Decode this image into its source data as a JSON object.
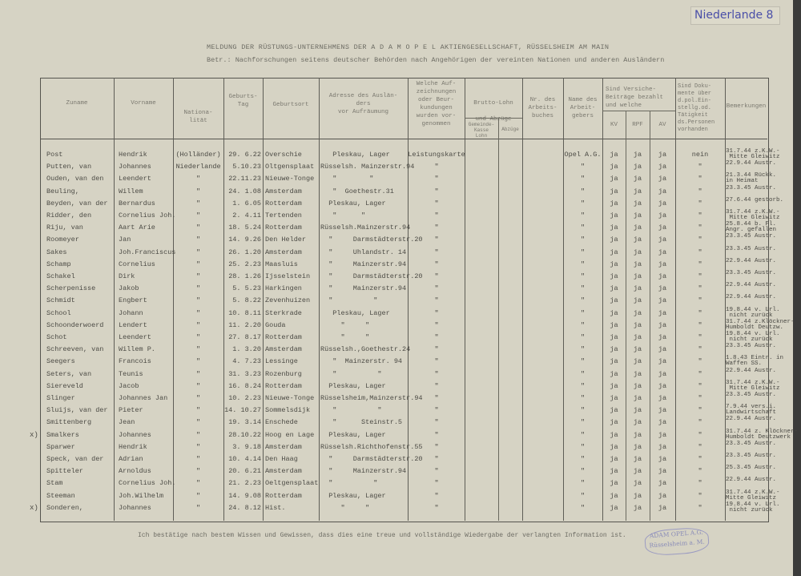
{
  "header": {
    "title": "MELDUNG DER RÜSTUNGS-UNTERNEHMENS DER A D A M  O P E L  AKTIENGESELLSCHAFT, RÜSSELSHEIM AM MAIN",
    "subject": "Betr.: Nachforschungen seitens deutscher Behörden nach Angehörigen der vereinten Nationen und anderen Ausländern",
    "country_note": "Niederlande 8"
  },
  "columns": {
    "zuname": "Zuname",
    "vorname": "Vorname",
    "nationalitaet": "Nationa-\nlität",
    "geburtstag": "Geburts-\nTag",
    "geburtsort": "Geburtsort",
    "adresse": "Adresse des Auslän-\nders\nvor Aufräumung",
    "aufzeichnungen": "Welche Auf-\nzeichnungen\noder Beur-\nkundungen\nwurden vor-\ngenommen",
    "lohn": "Brutto-Lohn\n\nund Abzüge",
    "lohn_sub1": "Gemeinde-\nKasse\nLohn",
    "lohn_sub2": "Abzüge",
    "arbeitsbuch": "Nr. des\nArbeits-\nbuches",
    "arbeitgeber": "Name des\nArbeit-\ngebers",
    "versicherung": "Sind Versiche-\nBeiträge bezahlt\nund welche",
    "kv": "KV",
    "rpf": "RPF",
    "av": "AV",
    "dokumente": "Sind Doku-\nmente über\nd.pol.Ein-\nstellg.od.\nTätigkeit\nds.Personen\nvorhanden",
    "bemerkungen": "Bemerkungen"
  },
  "rows": [
    {
      "zuname": "Post",
      "vorname": "Hendrik",
      "nat": "(Holländer)",
      "tag": "29. 6.22",
      "ort": "Overschie",
      "adresse": "   Pleskau, Lager",
      "aufz": "Leistungskarte",
      "ag": "Opel A.G.",
      "kv": "ja",
      "rpf": "ja",
      "av": "ja",
      "dok": "nein",
      "rem": "31.7.44 z.K.W.-\n Mitte Gleiwitz"
    },
    {
      "zuname": "Putten, van",
      "vorname": "Johannes",
      "nat": "Niederlande",
      "tag": "5.10.23",
      "ort": "Oltgensplaat",
      "adresse": "Rüsselsh. Mainzerstr.94",
      "aufz": "\"",
      "ag": "\"",
      "kv": "ja",
      "rpf": "ja",
      "av": "ja",
      "dok": "\"",
      "rem": "22.9.44 Austr."
    },
    {
      "zuname": "Ouden, van den",
      "vorname": "Leendert",
      "nat": "\"",
      "tag": "22.11.23",
      "ort": "Nieuwe-Tonge",
      "adresse": "   \"        \"",
      "aufz": "\"",
      "ag": "\"",
      "kv": "ja",
      "rpf": "ja",
      "av": "ja",
      "dok": "\"",
      "rem": "21.3.44 Rückk.\nin Heimat"
    },
    {
      "zuname": "Beuling,",
      "vorname": "Willem",
      "nat": "\"",
      "tag": "24. 1.08",
      "ort": "Amsterdam",
      "adresse": "   \"  Goethestr.31",
      "aufz": "\"",
      "ag": "\"",
      "kv": "ja",
      "rpf": "ja",
      "av": "ja",
      "dok": "\"",
      "rem": "23.3.45 Austr."
    },
    {
      "zuname": "Beyden, van der",
      "vorname": "Bernardus",
      "nat": "\"",
      "tag": "1. 6.05",
      "ort": "Rotterdam",
      "adresse": "  Pleskau, Lager",
      "aufz": "\"",
      "ag": "\"",
      "kv": "ja",
      "rpf": "ja",
      "av": "ja",
      "dok": "\"",
      "rem": "27.6.44 gestorb."
    },
    {
      "zuname": "Ridder, den",
      "vorname": "Cornelius Joh.",
      "nat": "\"",
      "tag": "2. 4.11",
      "ort": "Tertenden",
      "adresse": "   \"      \"",
      "aufz": "\"",
      "ag": "\"",
      "kv": "ja",
      "rpf": "ja",
      "av": "ja",
      "dok": "\"",
      "rem": "31.7.44 z.K.W.-\n Mitte Gleiwitz"
    },
    {
      "zuname": "Riju, van",
      "vorname": "Aart Arie",
      "nat": "\"",
      "tag": "18. 5.24",
      "ort": "Rotterdam",
      "adresse": "Rüsselsh.Mainzerstr.94",
      "aufz": "\"",
      "ag": "\"",
      "kv": "ja",
      "rpf": "ja",
      "av": "ja",
      "dok": "\"",
      "rem": "25.8.44 b. Fl.\nAngr. gefallen"
    },
    {
      "zuname": "Roomeyer",
      "vorname": "Jan",
      "nat": "\"",
      "tag": "14. 9.26",
      "ort": "Den Helder",
      "adresse": "  \"     Darmstädterstr.20",
      "aufz": "\"",
      "ag": "\"",
      "kv": "ja",
      "rpf": "ja",
      "av": "ja",
      "dok": "\"",
      "rem": "23.3.45 Austr."
    },
    {
      "zuname": "Sakes",
      "vorname": "Joh.Franciscus",
      "nat": "\"",
      "tag": "26. 1.20",
      "ort": "Amsterdam",
      "adresse": "  \"     Uhlandstr. 14",
      "aufz": "\"",
      "ag": "\"",
      "kv": "ja",
      "rpf": "ja",
      "av": "ja",
      "dok": "\"",
      "rem": "23.3.45 Austr."
    },
    {
      "zuname": "Schamp",
      "vorname": "Cornelius",
      "nat": "\"",
      "tag": "25. 2.23",
      "ort": "Maasluis",
      "adresse": "  \"     Mainzerstr.94",
      "aufz": "\"",
      "ag": "\"",
      "kv": "ja",
      "rpf": "ja",
      "av": "ja",
      "dok": "\"",
      "rem": "22.9.44 Austr."
    },
    {
      "zuname": "Schakel",
      "vorname": "Dirk",
      "nat": "\"",
      "tag": "28. 1.26",
      "ort": "Ijsselstein",
      "adresse": "  \"     Darmstädterstr.20",
      "aufz": "\"",
      "ag": "\"",
      "kv": "ja",
      "rpf": "ja",
      "av": "ja",
      "dok": "\"",
      "rem": "23.3.45 Austr."
    },
    {
      "zuname": "Scherpenisse",
      "vorname": "Jakob",
      "nat": "\"",
      "tag": "5. 5.23",
      "ort": "Harkingen",
      "adresse": "  \"     Mainzerstr.94",
      "aufz": "\"",
      "ag": "\"",
      "kv": "ja",
      "rpf": "ja",
      "av": "ja",
      "dok": "\"",
      "rem": "22.9.44 Austr."
    },
    {
      "zuname": " Schmidt",
      "vorname": "Engbert",
      "nat": "\"",
      "tag": "5. 8.22",
      "ort": "Zevenhuizen",
      "adresse": "  \"          \"",
      "aufz": "\"",
      "ag": "\"",
      "kv": "ja",
      "rpf": "ja",
      "av": "ja",
      "dok": "\"",
      "rem": "22.9.44 Austr."
    },
    {
      "zuname": "School",
      "vorname": "Johann",
      "nat": "\"",
      "tag": "10. 8.11",
      "ort": "Sterkrade",
      "adresse": "   Pleskau, Lager",
      "aufz": "\"",
      "ag": "\"",
      "kv": "ja",
      "rpf": "ja",
      "av": "ja",
      "dok": "\"",
      "rem": "19.8.44 v. Url.\n nicht zurück"
    },
    {
      "zuname": "Schoonderwoerd",
      "vorname": "Lendert",
      "nat": "\"",
      "tag": "11. 2.20",
      "ort": "Gouda",
      "adresse": "     \"     \"",
      "aufz": "\"",
      "ag": "\"",
      "kv": "ja",
      "rpf": "ja",
      "av": "ja",
      "dok": "\"",
      "rem": "31.7.44 z.Klöckner-\nHumboldt Deutzw."
    },
    {
      "zuname": "Schot",
      "vorname": "Leendert",
      "nat": "\"",
      "tag": "27. 8.17",
      "ort": "Rotterdam",
      "adresse": "     \"     \"",
      "aufz": "\"",
      "ag": "\"",
      "kv": "ja",
      "rpf": "ja",
      "av": "ja",
      "dok": "\"",
      "rem": "19.8.44 v. Url.\n nicht zurück"
    },
    {
      "zuname": "Schreeven, van",
      "vorname": "Willem P.",
      "nat": "\"",
      "tag": "1. 3.20",
      "ort": "Amsterdam",
      "adresse": "Rüsselsh.,Goethestr.24",
      "aufz": "\"",
      "ag": "\"",
      "kv": "ja",
      "rpf": "ja",
      "av": "ja",
      "dok": "\"",
      "rem": "23.3.45 Austr."
    },
    {
      "zuname": "Seegers",
      "vorname": "Francois",
      "nat": "\"",
      "tag": "4. 7.23",
      "ort": "Lessinge",
      "adresse": "   \"  Mainzerstr. 94",
      "aufz": "\"",
      "ag": "\"",
      "kv": "ja",
      "rpf": "ja",
      "av": "ja",
      "dok": "\"",
      "rem": "1.8.43 Eintr. in\nWaffen SS."
    },
    {
      "zuname": "Seters, van",
      "vorname": "Teunis",
      "nat": "\"",
      "tag": "31. 3.23",
      "ort": "Rozenburg",
      "adresse": "   \"          \"",
      "aufz": "\"",
      "ag": "\"",
      "kv": "ja",
      "rpf": "ja",
      "av": "ja",
      "dok": "\"",
      "rem": "22.9.44 Austr."
    },
    {
      "zuname": "Siereveld",
      "vorname": "Jacob",
      "nat": "\"",
      "tag": "16. 8.24",
      "ort": "Rotterdam",
      "adresse": "  Pleskau, Lager",
      "aufz": "\"",
      "ag": "\"",
      "kv": "ja",
      "rpf": "ja",
      "av": "ja",
      "dok": "\"",
      "rem": "31.7.44 z.K.W.-\n Mitte Gleiwitz"
    },
    {
      "zuname": "Slinger",
      "vorname": "Johannes Jan",
      "nat": "\"",
      "tag": "10. 2.23",
      "ort": "Nieuwe-Tonge",
      "adresse": "Rüsselsheim,Mainzerstr.94",
      "aufz": "\"",
      "ag": "\"",
      "kv": "ja",
      "rpf": "ja",
      "av": "ja",
      "dok": "\"",
      "rem": "23.3.45 Austr."
    },
    {
      "zuname": "Sluijs, van der",
      "vorname": "Pieter",
      "nat": "\"",
      "tag": "14. 10.27",
      "ort": "Sommelsdijk",
      "adresse": "   \"          \"",
      "aufz": "\"",
      "ag": "\"",
      "kv": "ja",
      "rpf": "ja",
      "av": "ja",
      "dok": "\"",
      "rem": "7.9.44 vers.i.\nLandwirtschaft"
    },
    {
      "zuname": "Smittenberg",
      "vorname": "Jean",
      "nat": "\"",
      "tag": "19. 3.14",
      "ort": "Enschede",
      "adresse": "   \"      Steinstr.5",
      "aufz": "\"",
      "ag": "\"",
      "kv": "ja",
      "rpf": "ja",
      "av": "ja",
      "dok": "\"",
      "rem": "22.9.44 Austr."
    },
    {
      "zuname": "Smalkers",
      "vorname": "Johannes",
      "nat": "\"",
      "tag": "28.10.22",
      "ort": "Hoog en Lage",
      "adresse": "  Pleskau, Lager",
      "aufz": "\"",
      "ag": "\"",
      "kv": "ja",
      "rpf": "ja",
      "av": "ja",
      "dok": "\"",
      "rem": "31.7.44 z. Klöckner-\nHumboldt Deutzwerk",
      "marker": "x)"
    },
    {
      "zuname": "Sparwer",
      "vorname": "Hendrik",
      "nat": "\"",
      "tag": "3. 9.18",
      "ort": "Amsterdam",
      "adresse": "Rüsselsh.Richthofenstr.55",
      "aufz": "\"",
      "ag": "\"",
      "kv": "ja",
      "rpf": "ja",
      "av": "ja",
      "dok": "\"",
      "rem": "23.3.45 Austr."
    },
    {
      "zuname": "Speck, van der",
      "vorname": "Adrian",
      "nat": "\"",
      "tag": "10. 4.14",
      "ort": "Den Haag",
      "adresse": "  \"     Darmstädterstr.20",
      "aufz": "\"",
      "ag": "\"",
      "kv": "ja",
      "rpf": "ja",
      "av": "ja",
      "dok": "\"",
      "rem": "23.3.45 Austr."
    },
    {
      "zuname": "Spitteler",
      "vorname": "Arnoldus",
      "nat": "\"",
      "tag": "20. 6.21",
      "ort": "Amsterdam",
      "adresse": "  \"     Mainzerstr.94",
      "aufz": "\"",
      "ag": "\"",
      "kv": "ja",
      "rpf": "ja",
      "av": "ja",
      "dok": "\"",
      "rem": "25.3.45 Austr."
    },
    {
      "zuname": "Stam",
      "vorname": "Cornelius Joh.",
      "nat": "\"",
      "tag": "21. 2.23",
      "ort": "Oeltgensplaat",
      "adresse": "  \"          \"",
      "aufz": "\"",
      "ag": "\"",
      "kv": "ja",
      "rpf": "ja",
      "av": "ja",
      "dok": "\"",
      "rem": "22.9.44 Austr."
    },
    {
      "zuname": "Steeman",
      "vorname": "Joh.Wilhelm",
      "nat": "\"",
      "tag": "14. 9.08",
      "ort": "Rotterdam",
      "adresse": "  Pleskau, Lager",
      "aufz": "\"",
      "ag": "\"",
      "kv": "ja",
      "rpf": "ja",
      "av": "ja",
      "dok": "\"",
      "rem": "31.7.44 z.K.W.-\nMitte Gleiwitz"
    },
    {
      "zuname": "Sonderen,",
      "vorname": "Johannes",
      "nat": "\"",
      "tag": "24. 8.12",
      "ort": "Hist.",
      "adresse": "     \"     \"",
      "aufz": "\"",
      "ag": "\"",
      "kv": "ja",
      "rpf": "ja",
      "av": "ja",
      "dok": "\"",
      "rem": "19.8.44 v. Url.\n nicht zurück",
      "marker": "x)"
    }
  ],
  "footer": {
    "confirmation": "Ich bestätige nach bestem Wissen und Gewissen, dass dies eine treue und vollständige Wiedergabe der verlangten Information ist.",
    "stamp": "ADAM OPEL A.G. Rüsselsheim a. M."
  },
  "colors": {
    "paper": "#d6d3c4",
    "ink": "#4c4b45",
    "stamp": "#8a8cb8",
    "pencil": "#4a4fa8"
  }
}
